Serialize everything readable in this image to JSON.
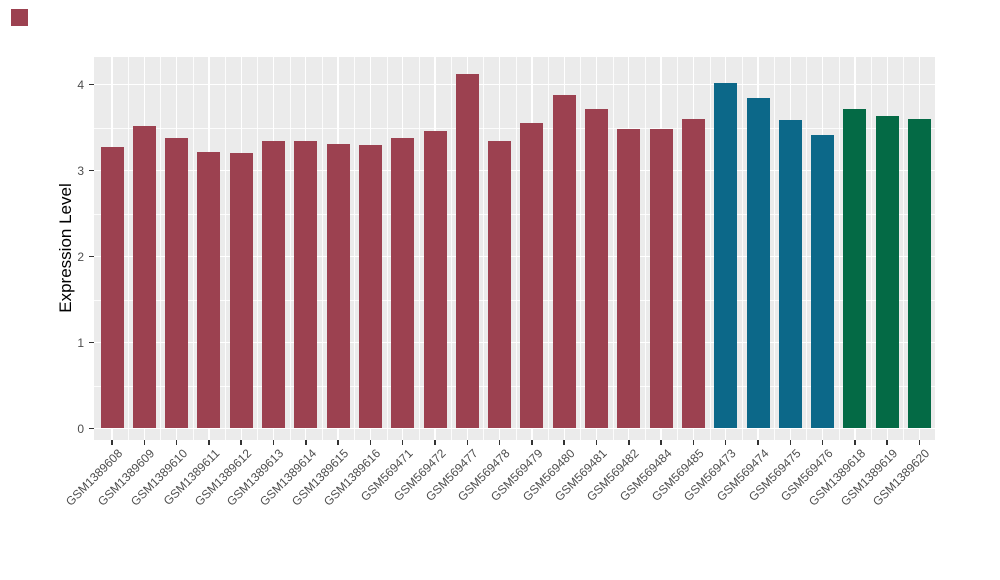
{
  "figure": {
    "background": "#FFFFFF",
    "stray_marker_color": "#9C4150"
  },
  "chart_data": {
    "type": "bar",
    "title": "",
    "xlabel": "",
    "ylabel": "Expression Level",
    "ylim": [
      0,
      4.33
    ],
    "yticks": [
      "0",
      "1",
      "2",
      "3",
      "4"
    ],
    "grid": true,
    "legend_position": "none",
    "panel_background": "#EBEBEB",
    "gridline_color": "#FFFFFF",
    "axis_text_color": "#4D4D4D",
    "axis_title_color": "#000000",
    "categories": [
      "GSM1389608",
      "GSM1389609",
      "GSM1389610",
      "GSM1389611",
      "GSM1389612",
      "GSM1389613",
      "GSM1389614",
      "GSM1389615",
      "GSM1389616",
      "GSM569471",
      "GSM569472",
      "GSM569477",
      "GSM569478",
      "GSM569479",
      "GSM569480",
      "GSM569481",
      "GSM569482",
      "GSM569484",
      "GSM569485",
      "GSM569473",
      "GSM569474",
      "GSM569475",
      "GSM569476",
      "GSM1389618",
      "GSM1389619",
      "GSM1389620"
    ],
    "values": [
      3.27,
      3.52,
      3.38,
      3.21,
      3.2,
      3.34,
      3.34,
      3.31,
      3.3,
      3.38,
      3.46,
      4.12,
      3.34,
      3.55,
      3.88,
      3.72,
      3.48,
      3.48,
      3.6,
      4.02,
      3.84,
      3.59,
      3.41,
      3.71,
      3.63,
      3.6
    ],
    "bar_groups": [
      "maroon",
      "maroon",
      "maroon",
      "maroon",
      "maroon",
      "maroon",
      "maroon",
      "maroon",
      "maroon",
      "maroon",
      "maroon",
      "maroon",
      "maroon",
      "maroon",
      "maroon",
      "maroon",
      "maroon",
      "maroon",
      "maroon",
      "teal",
      "teal",
      "teal",
      "teal",
      "green",
      "green",
      "green"
    ],
    "palette": {
      "maroon": "#9C4150",
      "teal": "#0C6889",
      "green": "#046A45"
    }
  }
}
